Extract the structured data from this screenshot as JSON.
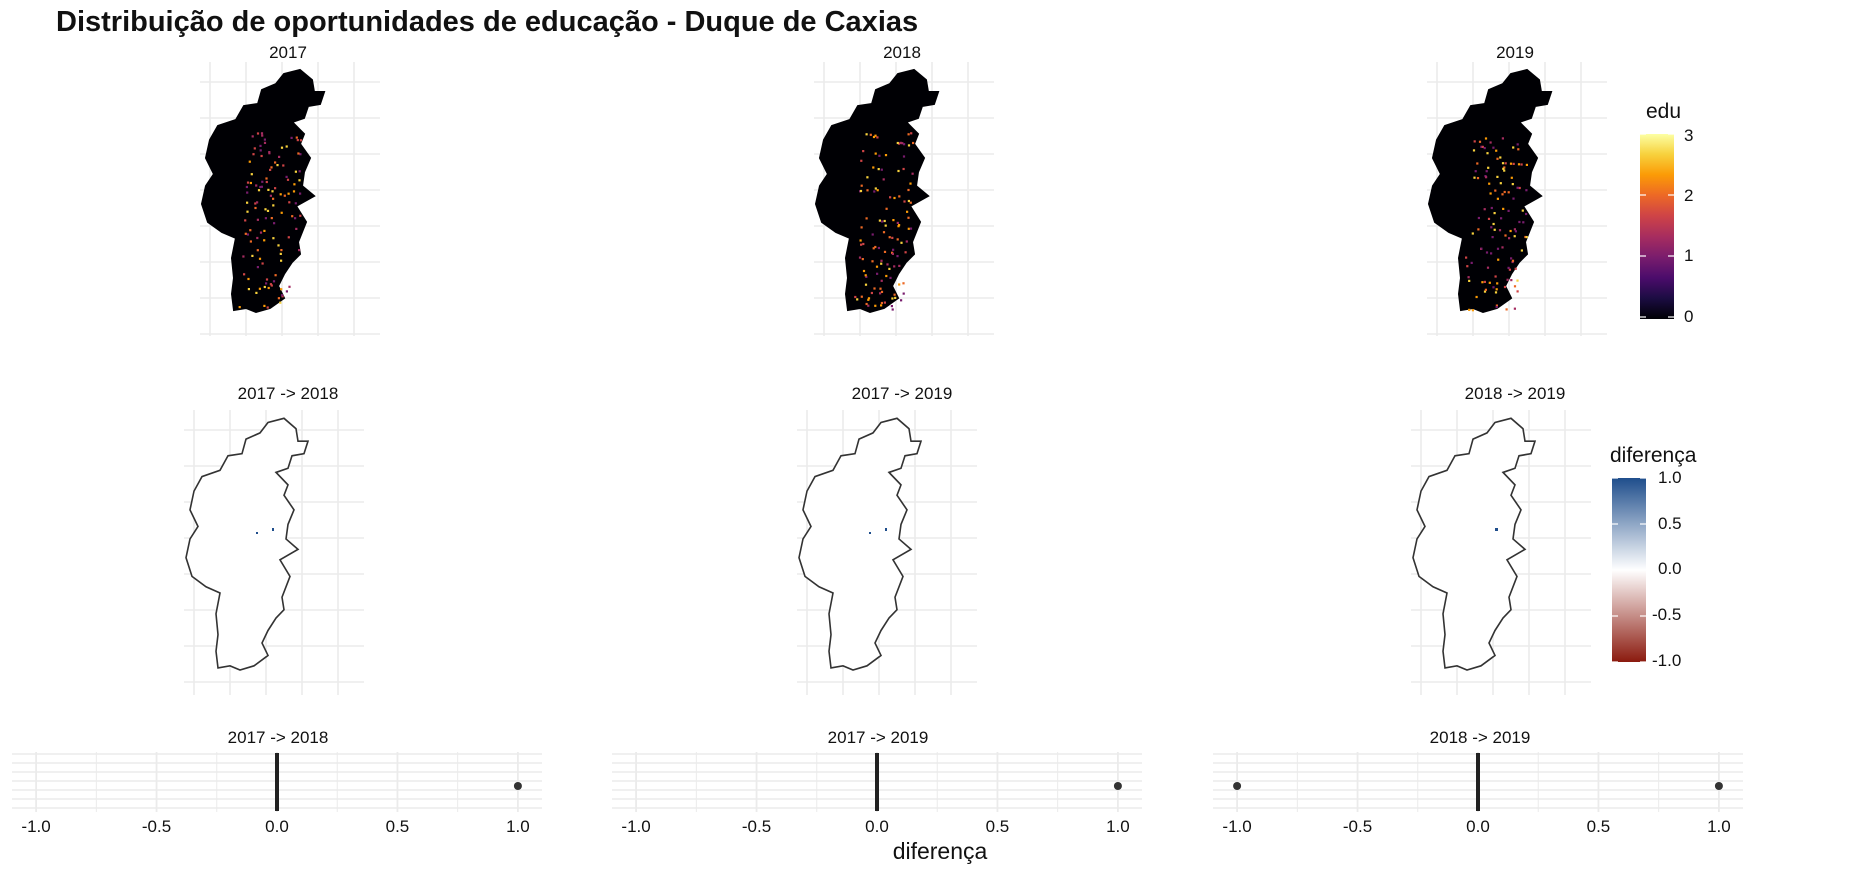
{
  "title": "Distribuição de oportunidades de educação - Duque de Caxias",
  "colors": {
    "background": "#ffffff",
    "grid": "#ebebeb",
    "map_fill": "#000004",
    "outline": "#333333",
    "diff_neg": "#8b1a0e",
    "diff_mid": "#ffffff",
    "diff_pos": "#1f4e8c",
    "dot": "#333333"
  },
  "legend_edu": {
    "title": "edu",
    "palette": "inferno",
    "ticks": [
      "3",
      "2",
      "1",
      "0"
    ]
  },
  "legend_diff": {
    "title": "diferença",
    "ticks": [
      "1.0",
      "0.5",
      "0.0",
      "-0.5",
      "-1.0"
    ]
  },
  "chart_data": [
    {
      "type": "heatmap",
      "title": "2017",
      "variable": "edu",
      "range": [
        0,
        3
      ],
      "description": "hexagonal grid map of education opportunities"
    },
    {
      "type": "heatmap",
      "title": "2018",
      "variable": "edu",
      "range": [
        0,
        3
      ]
    },
    {
      "type": "heatmap",
      "title": "2019",
      "variable": "edu",
      "range": [
        0,
        3
      ]
    },
    {
      "type": "heatmap",
      "title": "2017 -> 2018",
      "variable": "diferença",
      "range": [
        -1,
        1
      ]
    },
    {
      "type": "heatmap",
      "title": "2017 -> 2019",
      "variable": "diferença",
      "range": [
        -1,
        1
      ]
    },
    {
      "type": "heatmap",
      "title": "2018 -> 2019",
      "variable": "diferença",
      "range": [
        -1,
        1
      ]
    },
    {
      "type": "scatter",
      "title": "2017 -> 2018",
      "xlabel": "diferença",
      "xlim": [
        -1.1,
        1.1
      ],
      "xticks": [
        "-1.0",
        "-0.5",
        "0.0",
        "0.5",
        "1.0"
      ],
      "bar_at": 0,
      "points": [
        1.0
      ]
    },
    {
      "type": "scatter",
      "title": "2017 -> 2019",
      "xlabel": "diferença",
      "xlim": [
        -1.1,
        1.1
      ],
      "xticks": [
        "-1.0",
        "-0.5",
        "0.0",
        "0.5",
        "1.0"
      ],
      "bar_at": 0,
      "points": [
        1.0
      ]
    },
    {
      "type": "scatter",
      "title": "2018 -> 2019",
      "xlabel": "diferença",
      "xlim": [
        -1.1,
        1.1
      ],
      "xticks": [
        "-1.0",
        "-0.5",
        "0.0",
        "0.5",
        "1.0"
      ],
      "bar_at": 0,
      "points": [
        -1.0,
        1.0
      ]
    }
  ],
  "xlabel": "diferença"
}
